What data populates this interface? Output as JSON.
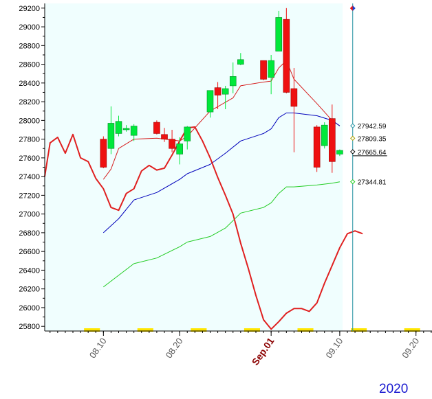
{
  "chart_data": {
    "type": "candlestick",
    "ylim": [
      25750,
      29250
    ],
    "y_ticks": [
      25800,
      26000,
      26200,
      26400,
      26600,
      26800,
      27000,
      27200,
      27400,
      27600,
      27800,
      28000,
      28200,
      28400,
      28600,
      28800,
      29000,
      29200
    ],
    "x_tick_labels": [
      {
        "label": "08.10",
        "day": 10
      },
      {
        "label": "08.20",
        "day": 20
      },
      {
        "label": "Sep.01",
        "day": 32,
        "bold": true
      },
      {
        "label": "09.10",
        "day": 41
      },
      {
        "label": "09.20",
        "day": 51
      }
    ],
    "x_day_range": [
      2.3,
      53.1
    ],
    "current_day": 42.7,
    "candles": [
      {
        "day": 10,
        "open": 27800,
        "high": 27830,
        "low": 27490,
        "close": 27500
      },
      {
        "day": 11,
        "open": 27700,
        "high": 28150,
        "low": 27640,
        "close": 27970
      },
      {
        "day": 12,
        "open": 27860,
        "high": 28050,
        "low": 27830,
        "close": 27990
      },
      {
        "day": 13,
        "open": 27900,
        "high": 27950,
        "low": 27880,
        "close": 27915
      },
      {
        "day": 14,
        "open": 27840,
        "high": 27960,
        "low": 27780,
        "close": 27940
      },
      {
        "day": 17,
        "open": 27980,
        "high": 28000,
        "low": 27850,
        "close": 27860
      },
      {
        "day": 18,
        "open": 27850,
        "high": 27920,
        "low": 27770,
        "close": 27800
      },
      {
        "day": 19,
        "open": 27800,
        "high": 27900,
        "low": 27660,
        "close": 27700
      },
      {
        "day": 20,
        "open": 27640,
        "high": 27820,
        "low": 27530,
        "close": 27750
      },
      {
        "day": 21,
        "open": 27780,
        "high": 27940,
        "low": 27690,
        "close": 27930
      },
      {
        "day": 24,
        "open": 28090,
        "high": 28320,
        "low": 28030,
        "close": 28320
      },
      {
        "day": 25,
        "open": 28350,
        "high": 28410,
        "low": 28120,
        "close": 28270
      },
      {
        "day": 26,
        "open": 28280,
        "high": 28370,
        "low": 28120,
        "close": 28340
      },
      {
        "day": 27,
        "open": 28370,
        "high": 28620,
        "low": 28290,
        "close": 28470
      },
      {
        "day": 28,
        "open": 28600,
        "high": 28720,
        "low": 28590,
        "close": 28650
      },
      {
        "day": 31,
        "open": 28640,
        "high": 28640,
        "low": 28430,
        "close": 28440
      },
      {
        "day": 32,
        "open": 28460,
        "high": 28700,
        "low": 28280,
        "close": 28640
      },
      {
        "day": 33,
        "open": 28740,
        "high": 29170,
        "low": 28740,
        "close": 29100
      },
      {
        "day": 34,
        "open": 29080,
        "high": 29200,
        "low": 28290,
        "close": 28300
      },
      {
        "day": 35,
        "open": 28340,
        "high": 28560,
        "low": 27660,
        "close": 28150
      },
      {
        "day": 38,
        "open": 27930,
        "high": 27950,
        "low": 27450,
        "close": 27500
      },
      {
        "day": 39,
        "open": 27730,
        "high": 27980,
        "low": 27700,
        "close": 27950
      },
      {
        "day": 40,
        "open": 28020,
        "high": 28170,
        "low": 27440,
        "close": 27560
      },
      {
        "day": 41,
        "open": 27640,
        "high": 27690,
        "low": 27620,
        "close": 27680
      }
    ],
    "series": [
      {
        "role": "thin-red",
        "color": "#d62020",
        "points": [
          [
            10,
            27370
          ],
          [
            11,
            27480
          ],
          [
            12,
            27700
          ],
          [
            14,
            27800
          ],
          [
            17,
            27810
          ],
          [
            20,
            27780
          ],
          [
            21,
            27830
          ],
          [
            24,
            28100
          ],
          [
            27,
            28240
          ],
          [
            28,
            28370
          ],
          [
            31,
            28410
          ],
          [
            32,
            28420
          ],
          [
            33,
            28560
          ],
          [
            34,
            28640
          ],
          [
            35,
            28440
          ],
          [
            38,
            28180
          ],
          [
            40,
            28000
          ],
          [
            41,
            27940
          ]
        ]
      },
      {
        "role": "blue",
        "color": "#0000bb",
        "points": [
          [
            10,
            26800
          ],
          [
            12,
            26950
          ],
          [
            14,
            27150
          ],
          [
            17,
            27230
          ],
          [
            20,
            27370
          ],
          [
            21,
            27430
          ],
          [
            24,
            27530
          ],
          [
            26,
            27650
          ],
          [
            28,
            27780
          ],
          [
            31,
            27860
          ],
          [
            32,
            27910
          ],
          [
            33,
            28030
          ],
          [
            34,
            28080
          ],
          [
            35,
            28080
          ],
          [
            38,
            28050
          ],
          [
            40,
            28000
          ],
          [
            41,
            27942.59
          ]
        ]
      },
      {
        "role": "green",
        "color": "#22cc22",
        "points": [
          [
            10,
            26220
          ],
          [
            14,
            26470
          ],
          [
            17,
            26530
          ],
          [
            20,
            26650
          ],
          [
            21,
            26700
          ],
          [
            24,
            26760
          ],
          [
            26,
            26850
          ],
          [
            28,
            27010
          ],
          [
            31,
            27070
          ],
          [
            32,
            27120
          ],
          [
            33,
            27220
          ],
          [
            34,
            27290
          ],
          [
            35,
            27290
          ],
          [
            38,
            27310
          ],
          [
            40,
            27330
          ],
          [
            41,
            27344.81
          ]
        ]
      },
      {
        "role": "thick-red",
        "color": "#e02020",
        "points": [
          [
            2.3,
            27400
          ],
          [
            3,
            27760
          ],
          [
            4,
            27820
          ],
          [
            5,
            27650
          ],
          [
            6,
            27850
          ],
          [
            7,
            27600
          ],
          [
            8,
            27560
          ],
          [
            9,
            27380
          ],
          [
            10,
            27270
          ],
          [
            11,
            27070
          ],
          [
            12,
            27040
          ],
          [
            13,
            27220
          ],
          [
            14,
            27270
          ],
          [
            15,
            27460
          ],
          [
            16,
            27520
          ],
          [
            17,
            27470
          ],
          [
            18,
            27490
          ],
          [
            19,
            27630
          ],
          [
            20,
            27780
          ],
          [
            21,
            27920
          ],
          [
            22,
            27930
          ],
          [
            23,
            27780
          ],
          [
            24,
            27600
          ],
          [
            25,
            27390
          ],
          [
            26,
            27200
          ],
          [
            27,
            27000
          ],
          [
            28,
            26690
          ],
          [
            29,
            26420
          ],
          [
            30,
            26130
          ],
          [
            31,
            25870
          ],
          [
            32,
            25770
          ],
          [
            33,
            25850
          ],
          [
            34,
            25940
          ],
          [
            35,
            25990
          ],
          [
            36,
            25990
          ],
          [
            37,
            25960
          ],
          [
            38,
            26050
          ],
          [
            39,
            26260
          ],
          [
            40,
            26450
          ],
          [
            41,
            26640
          ],
          [
            42,
            26790
          ],
          [
            43,
            26820
          ],
          [
            44,
            26790
          ]
        ]
      }
    ],
    "callouts": [
      {
        "value": 27942.59,
        "label": "27942.59",
        "color": "#1e8fa0"
      },
      {
        "value": 27809.35,
        "label": "27809.35",
        "color": "#a9a000"
      },
      {
        "value": 27665.64,
        "label": "27665.64",
        "color": "#000000"
      },
      {
        "value": 27344.81,
        "label": "27344.81",
        "color": "#22cc22"
      }
    ],
    "colors": {
      "plot_background": "#f0fefe",
      "up_candle": "#00e83a",
      "down_candle": "#ee1111",
      "cursor_line": "#1e8fa0",
      "weekend_band": "#ffe600"
    },
    "weekend_days": [
      8,
      9,
      15,
      16,
      22,
      23,
      29,
      30,
      36,
      37,
      43,
      44,
      50,
      51
    ]
  },
  "year_label": "2020"
}
